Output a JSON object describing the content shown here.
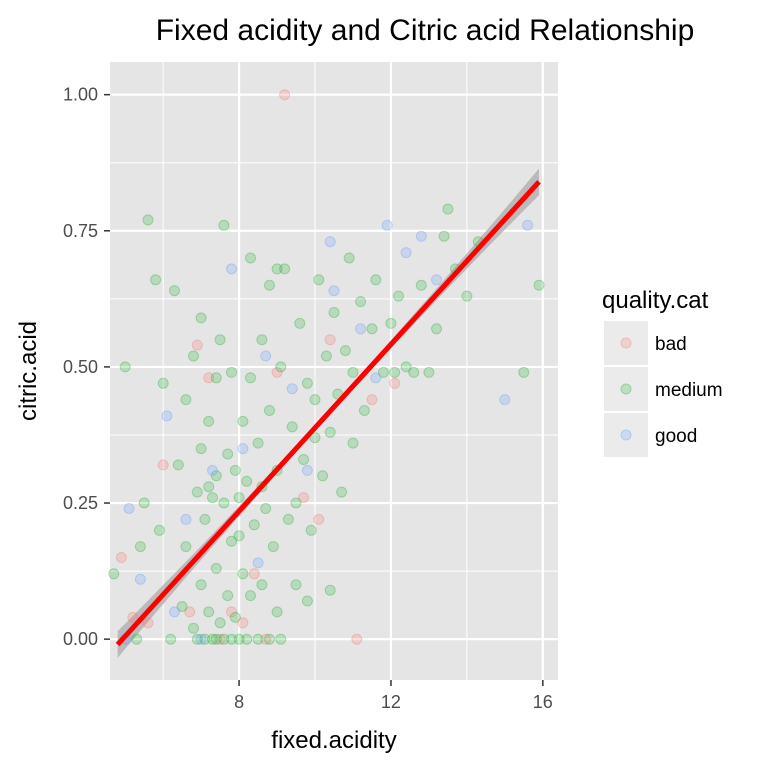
{
  "chart_data": {
    "type": "scatter",
    "title": "Fixed acidity and Citric acid Relationship",
    "xlabel": "fixed.acidity",
    "ylabel": "citric.acid",
    "xlim": [
      4.6,
      16.4
    ],
    "ylim": [
      -0.075,
      1.06
    ],
    "x_ticks": [
      8,
      12,
      16
    ],
    "x_tick_labels": [
      "8",
      "12",
      "16"
    ],
    "y_ticks": [
      0,
      0.25,
      0.5,
      0.75,
      1.0
    ],
    "y_tick_labels": [
      "0.00",
      "0.25",
      "0.50",
      "0.75",
      "1.00"
    ],
    "grid": true,
    "legend": {
      "title": "quality.cat",
      "position": "right",
      "entries": [
        "bad",
        "medium",
        "good"
      ]
    },
    "colors": {
      "bad": "#F8766D",
      "medium": "#1FB032",
      "good": "#619CFF",
      "panel": "#E5E5E5",
      "grid": "#FFFFFF",
      "trend": "#FF0000",
      "band": "#B3B3B3"
    },
    "series": [
      {
        "name": "bad",
        "points": [
          [
            4.9,
            0.15
          ],
          [
            5.2,
            0.04
          ],
          [
            5.6,
            0.03
          ],
          [
            6.0,
            0.32
          ],
          [
            6.9,
            0.54
          ],
          [
            7.2,
            0.48
          ],
          [
            8.1,
            0.03
          ],
          [
            8.4,
            0.12
          ],
          [
            9.2,
            1.0
          ],
          [
            9.7,
            0.26
          ],
          [
            10.4,
            0.55
          ],
          [
            11.1,
            0.0
          ],
          [
            11.5,
            0.44
          ],
          [
            12.1,
            0.47
          ],
          [
            7.8,
            0.05
          ],
          [
            8.7,
            0.0
          ],
          [
            6.7,
            0.05
          ],
          [
            10.1,
            0.22
          ],
          [
            7.5,
            0.0
          ],
          [
            9.0,
            0.49
          ]
        ]
      },
      {
        "name": "medium",
        "points": [
          [
            4.7,
            0.12
          ],
          [
            5.0,
            0.5
          ],
          [
            5.3,
            0.0
          ],
          [
            5.6,
            0.77
          ],
          [
            5.8,
            0.66
          ],
          [
            6.0,
            0.47
          ],
          [
            5.4,
            0.17
          ],
          [
            5.5,
            0.25
          ],
          [
            5.9,
            0.2
          ],
          [
            6.2,
            0.0
          ],
          [
            6.4,
            0.32
          ],
          [
            6.5,
            0.06
          ],
          [
            6.6,
            0.17
          ],
          [
            6.6,
            0.44
          ],
          [
            6.8,
            0.52
          ],
          [
            6.9,
            0.0
          ],
          [
            6.9,
            0.27
          ],
          [
            7.0,
            0.1
          ],
          [
            7.0,
            0.35
          ],
          [
            7.1,
            0.0
          ],
          [
            7.1,
            0.22
          ],
          [
            7.2,
            0.05
          ],
          [
            7.2,
            0.4
          ],
          [
            7.3,
            0.0
          ],
          [
            7.3,
            0.26
          ],
          [
            7.4,
            0.0
          ],
          [
            7.4,
            0.13
          ],
          [
            7.4,
            0.3
          ],
          [
            7.5,
            0.03
          ],
          [
            7.5,
            0.55
          ],
          [
            7.6,
            0.0
          ],
          [
            7.6,
            0.25
          ],
          [
            7.7,
            0.08
          ],
          [
            7.7,
            0.34
          ],
          [
            7.8,
            0.0
          ],
          [
            7.8,
            0.18
          ],
          [
            7.8,
            0.49
          ],
          [
            7.9,
            0.04
          ],
          [
            7.9,
            0.31
          ],
          [
            8.0,
            0.0
          ],
          [
            8.0,
            0.26
          ],
          [
            8.1,
            0.12
          ],
          [
            8.1,
            0.4
          ],
          [
            8.2,
            0.0
          ],
          [
            8.2,
            0.29
          ],
          [
            8.3,
            0.08
          ],
          [
            8.3,
            0.48
          ],
          [
            8.4,
            0.21
          ],
          [
            8.5,
            0.0
          ],
          [
            8.5,
            0.36
          ],
          [
            8.6,
            0.1
          ],
          [
            8.6,
            0.55
          ],
          [
            8.7,
            0.24
          ],
          [
            8.8,
            0.0
          ],
          [
            8.8,
            0.42
          ],
          [
            8.9,
            0.17
          ],
          [
            9.0,
            0.05
          ],
          [
            9.0,
            0.31
          ],
          [
            9.1,
            0.5
          ],
          [
            9.2,
            0.68
          ],
          [
            9.3,
            0.22
          ],
          [
            9.4,
            0.39
          ],
          [
            9.5,
            0.1
          ],
          [
            9.6,
            0.58
          ],
          [
            9.7,
            0.33
          ],
          [
            9.8,
            0.47
          ],
          [
            9.9,
            0.2
          ],
          [
            10.0,
            0.44
          ],
          [
            10.1,
            0.66
          ],
          [
            10.2,
            0.3
          ],
          [
            10.3,
            0.52
          ],
          [
            10.4,
            0.38
          ],
          [
            10.5,
            0.6
          ],
          [
            10.6,
            0.45
          ],
          [
            10.7,
            0.27
          ],
          [
            10.8,
            0.53
          ],
          [
            10.9,
            0.7
          ],
          [
            11.0,
            0.49
          ],
          [
            11.2,
            0.62
          ],
          [
            11.3,
            0.42
          ],
          [
            11.5,
            0.57
          ],
          [
            11.6,
            0.66
          ],
          [
            11.8,
            0.49
          ],
          [
            12.0,
            0.58
          ],
          [
            12.2,
            0.63
          ],
          [
            12.4,
            0.5
          ],
          [
            12.6,
            0.49
          ],
          [
            12.8,
            0.65
          ],
          [
            13.0,
            0.49
          ],
          [
            13.2,
            0.57
          ],
          [
            13.4,
            0.74
          ],
          [
            13.5,
            0.79
          ],
          [
            13.7,
            0.68
          ],
          [
            14.0,
            0.63
          ],
          [
            14.3,
            0.73
          ],
          [
            15.5,
            0.49
          ],
          [
            15.9,
            0.65
          ],
          [
            7.0,
            0.59
          ],
          [
            8.3,
            0.7
          ],
          [
            9.0,
            0.68
          ],
          [
            7.6,
            0.76
          ],
          [
            8.8,
            0.65
          ],
          [
            10.4,
            0.09
          ],
          [
            9.8,
            0.07
          ],
          [
            9.1,
            0.0
          ],
          [
            6.3,
            0.64
          ],
          [
            7.2,
            0.28
          ],
          [
            8.0,
            0.19
          ],
          [
            8.6,
            0.28
          ],
          [
            7.4,
            0.48
          ],
          [
            10.0,
            0.37
          ],
          [
            11.0,
            0.36
          ],
          [
            12.1,
            0.49
          ],
          [
            9.5,
            0.25
          ],
          [
            6.8,
            0.02
          ]
        ]
      },
      {
        "name": "good",
        "points": [
          [
            5.0,
            0.0
          ],
          [
            5.1,
            0.24
          ],
          [
            5.4,
            0.11
          ],
          [
            6.1,
            0.41
          ],
          [
            7.3,
            0.31
          ],
          [
            7.8,
            0.68
          ],
          [
            8.1,
            0.35
          ],
          [
            8.7,
            0.52
          ],
          [
            9.4,
            0.46
          ],
          [
            10.4,
            0.73
          ],
          [
            10.5,
            0.64
          ],
          [
            11.2,
            0.57
          ],
          [
            11.9,
            0.76
          ],
          [
            12.4,
            0.71
          ],
          [
            12.8,
            0.74
          ],
          [
            13.2,
            0.66
          ],
          [
            15.0,
            0.44
          ],
          [
            15.6,
            0.76
          ],
          [
            6.6,
            0.22
          ],
          [
            9.8,
            0.31
          ],
          [
            7.0,
            0.0
          ],
          [
            8.5,
            0.14
          ],
          [
            11.6,
            0.48
          ],
          [
            6.3,
            0.05
          ]
        ]
      }
    ],
    "trend": {
      "method": "linear",
      "color": "red",
      "x_range": [
        4.8,
        15.9
      ],
      "y_range": [
        -0.01,
        0.84
      ]
    }
  }
}
